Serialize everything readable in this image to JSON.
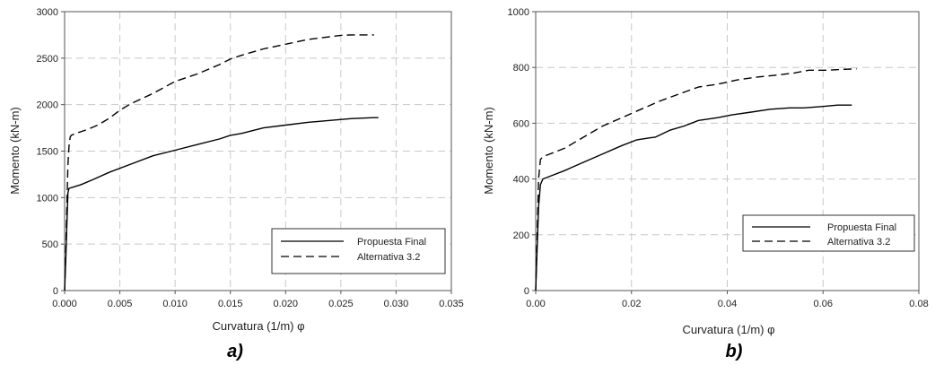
{
  "chart_data": [
    {
      "type": "line",
      "panel_label": "a)",
      "xlabel": "Curvatura (1/m) φ",
      "ylabel": "Momento (kN-m)",
      "xlim": [
        0,
        0.035
      ],
      "ylim": [
        0,
        3000
      ],
      "xticks": [
        "0.000",
        "0.005",
        "0.010",
        "0.015",
        "0.020",
        "0.025",
        "0.030",
        "0.035"
      ],
      "yticks": [
        "0",
        "500",
        "1000",
        "1500",
        "2000",
        "2500",
        "3000"
      ],
      "grid": true,
      "legend_position": "bottom-right",
      "series": [
        {
          "name": "Propuesta Final",
          "style": "solid",
          "x": [
            0,
            0.0001,
            0.0002,
            0.0003,
            0.0004,
            0.0007,
            0.0015,
            0.0025,
            0.004,
            0.006,
            0.008,
            0.01,
            0.012,
            0.014,
            0.015,
            0.016,
            0.017,
            0.018,
            0.02,
            0.022,
            0.024,
            0.026,
            0.028,
            0.0284
          ],
          "y": [
            0,
            300,
            700,
            1050,
            1100,
            1110,
            1140,
            1190,
            1270,
            1360,
            1450,
            1510,
            1570,
            1630,
            1670,
            1690,
            1720,
            1750,
            1780,
            1810,
            1830,
            1850,
            1860,
            1860
          ]
        },
        {
          "name": "Alternativa 3.2",
          "style": "dashed",
          "x": [
            0,
            0.0001,
            0.0002,
            0.0003,
            0.0004,
            0.0005,
            0.0006,
            0.001,
            0.002,
            0.003,
            0.004,
            0.005,
            0.006,
            0.008,
            0.01,
            0.012,
            0.014,
            0.015,
            0.016,
            0.018,
            0.02,
            0.022,
            0.024,
            0.025,
            0.026,
            0.028
          ],
          "y": [
            0,
            400,
            900,
            1350,
            1550,
            1650,
            1670,
            1690,
            1730,
            1780,
            1850,
            1940,
            2010,
            2120,
            2250,
            2330,
            2430,
            2490,
            2530,
            2600,
            2650,
            2700,
            2730,
            2745,
            2750,
            2750
          ]
        }
      ]
    },
    {
      "type": "line",
      "panel_label": "b)",
      "xlabel": "Curvatura (1/m) φ",
      "ylabel": "Momento (kN-m)",
      "xlim": [
        0,
        0.08
      ],
      "ylim": [
        0,
        1000
      ],
      "xticks": [
        "0.00",
        "0.02",
        "0.04",
        "0.06",
        "0.08"
      ],
      "yticks": [
        "0",
        "200",
        "400",
        "600",
        "800",
        "1000"
      ],
      "grid": true,
      "legend_position": "bottom-right",
      "series": [
        {
          "name": "Propuesta Final",
          "style": "solid",
          "x": [
            0,
            0.0003,
            0.0006,
            0.001,
            0.0015,
            0.003,
            0.006,
            0.01,
            0.014,
            0.018,
            0.021,
            0.024,
            0.025,
            0.028,
            0.031,
            0.034,
            0.038,
            0.041,
            0.045,
            0.049,
            0.053,
            0.056,
            0.06,
            0.063,
            0.066
          ],
          "y": [
            0,
            150,
            300,
            380,
            400,
            410,
            430,
            460,
            490,
            520,
            540,
            548,
            550,
            575,
            590,
            610,
            620,
            630,
            640,
            650,
            655,
            655,
            660,
            665,
            665
          ]
        },
        {
          "name": "Alternativa 3.2",
          "style": "dashed",
          "x": [
            0,
            0.0003,
            0.0006,
            0.001,
            0.0015,
            0.003,
            0.006,
            0.01,
            0.014,
            0.018,
            0.022,
            0.026,
            0.03,
            0.034,
            0.038,
            0.042,
            0.046,
            0.05,
            0.054,
            0.057,
            0.061,
            0.064,
            0.067
          ],
          "y": [
            0,
            200,
            400,
            470,
            480,
            490,
            510,
            550,
            590,
            620,
            650,
            680,
            705,
            730,
            740,
            755,
            765,
            772,
            780,
            790,
            790,
            793,
            795
          ]
        }
      ]
    }
  ],
  "colors": {
    "line": "#000000",
    "grid": "#c8c8c8",
    "axis": "#555555"
  }
}
